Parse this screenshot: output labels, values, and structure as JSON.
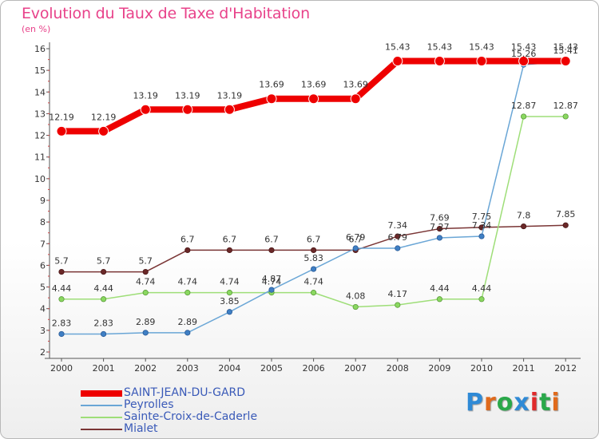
{
  "title": "Evolution du Taux de Taxe d'Habitation",
  "unit": "(en %)",
  "logo_text": "Proxiti",
  "logo_colors": [
    "#2f8ad6",
    "#e06a1c",
    "#2aa84a",
    "#2f8ad6",
    "#e02a2a",
    "#2aa84a",
    "#e06a1c"
  ],
  "colors": {
    "SAINT-JEAN-DU-GARD": "#ee0000",
    "Peyrolles": "#6aa6d6",
    "Sainte-Croix-de-Caderle": "#9ede78",
    "Mialet": "#7a3535"
  },
  "chart_data": {
    "type": "line",
    "x": [
      "2000",
      "2001",
      "2002",
      "2003",
      "2004",
      "2005",
      "2006",
      "2007",
      "2008",
      "2009",
      "2010",
      "2011",
      "2012"
    ],
    "ylim": [
      2,
      16
    ],
    "yticks": [
      2,
      3,
      4,
      5,
      6,
      7,
      8,
      9,
      10,
      11,
      12,
      13,
      14,
      15,
      16
    ],
    "grid": false,
    "legend_position": "bottom-left",
    "series": [
      {
        "name": "SAINT-JEAN-DU-GARD",
        "values": [
          12.19,
          12.19,
          13.19,
          13.19,
          13.19,
          13.69,
          13.69,
          13.69,
          15.43,
          15.43,
          15.43,
          15.43,
          15.43
        ],
        "labels": [
          "12.19",
          "12.19",
          "13.19",
          "13.19",
          "13.19",
          "13.69",
          "13.69",
          "13.69",
          "15.43",
          "15.43",
          "15.43",
          "15.43",
          "15.43"
        ]
      },
      {
        "name": "Peyrolles",
        "values": [
          2.83,
          2.83,
          2.89,
          2.89,
          3.85,
          4.87,
          5.83,
          6.79,
          6.79,
          7.27,
          7.34,
          15.26,
          15.41
        ],
        "labels": [
          "2.83",
          "2.83",
          "2.89",
          "2.89",
          "3.85",
          "4.87",
          "5.83",
          "6.79",
          "6.79",
          "7.27",
          "7.34",
          "15.26",
          "15.41"
        ]
      },
      {
        "name": "Sainte-Croix-de-Caderle",
        "values": [
          4.44,
          4.44,
          4.74,
          4.74,
          4.74,
          4.74,
          4.74,
          4.08,
          4.17,
          4.44,
          4.44,
          12.87,
          12.87
        ],
        "labels": [
          "4.44",
          "4.44",
          "4.74",
          "4.74",
          "4.74",
          "4.74",
          "4.74",
          "4.08",
          "4.17",
          "4.44",
          "4.44",
          "12.87",
          "12.87"
        ]
      },
      {
        "name": "Mialet",
        "values": [
          5.7,
          5.7,
          5.7,
          6.7,
          6.7,
          6.7,
          6.7,
          6.7,
          7.34,
          7.69,
          7.75,
          7.8,
          7.85
        ],
        "labels": [
          "5.7",
          "5.7",
          "5.7",
          "6.7",
          "6.7",
          "6.7",
          "6.7",
          "6.7",
          "7.34",
          "7.69",
          "7.75",
          "7.8",
          "7.85"
        ]
      }
    ]
  }
}
